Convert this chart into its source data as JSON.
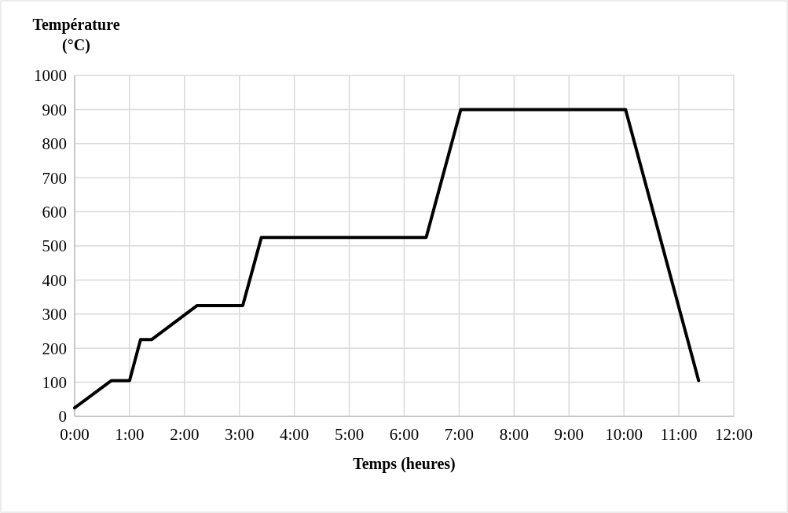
{
  "chart_data": {
    "type": "line",
    "xlabel": "Temps (heures)",
    "ylabel": "Température (°C)",
    "x": [
      0,
      0.67,
      1.0,
      1.2,
      1.4,
      2.23,
      3.06,
      3.4,
      6.4,
      7.03,
      10.03,
      11.36
    ],
    "series": [
      {
        "color": "#000000",
        "values": [
          25,
          105,
          105,
          225,
          225,
          325,
          325,
          525,
          525,
          900,
          900,
          105
        ]
      }
    ],
    "xlim": [
      0,
      12
    ],
    "ylim": [
      0,
      1000
    ],
    "xticks": [
      {
        "value": 0,
        "label": "0:00"
      },
      {
        "value": 1,
        "label": "1:00"
      },
      {
        "value": 2,
        "label": "2:00"
      },
      {
        "value": 3,
        "label": "3:00"
      },
      {
        "value": 4,
        "label": "4:00"
      },
      {
        "value": 5,
        "label": "5:00"
      },
      {
        "value": 6,
        "label": "6:00"
      },
      {
        "value": 7,
        "label": "7:00"
      },
      {
        "value": 8,
        "label": "8:00"
      },
      {
        "value": 9,
        "label": "9:00"
      },
      {
        "value": 10,
        "label": "10:00"
      },
      {
        "value": 11,
        "label": "11:00"
      },
      {
        "value": 12,
        "label": "12:00"
      }
    ],
    "yticks": [
      0,
      100,
      200,
      300,
      400,
      500,
      600,
      700,
      800,
      900,
      1000
    ],
    "grid": true,
    "marker": "none",
    "line_style": "solid"
  }
}
